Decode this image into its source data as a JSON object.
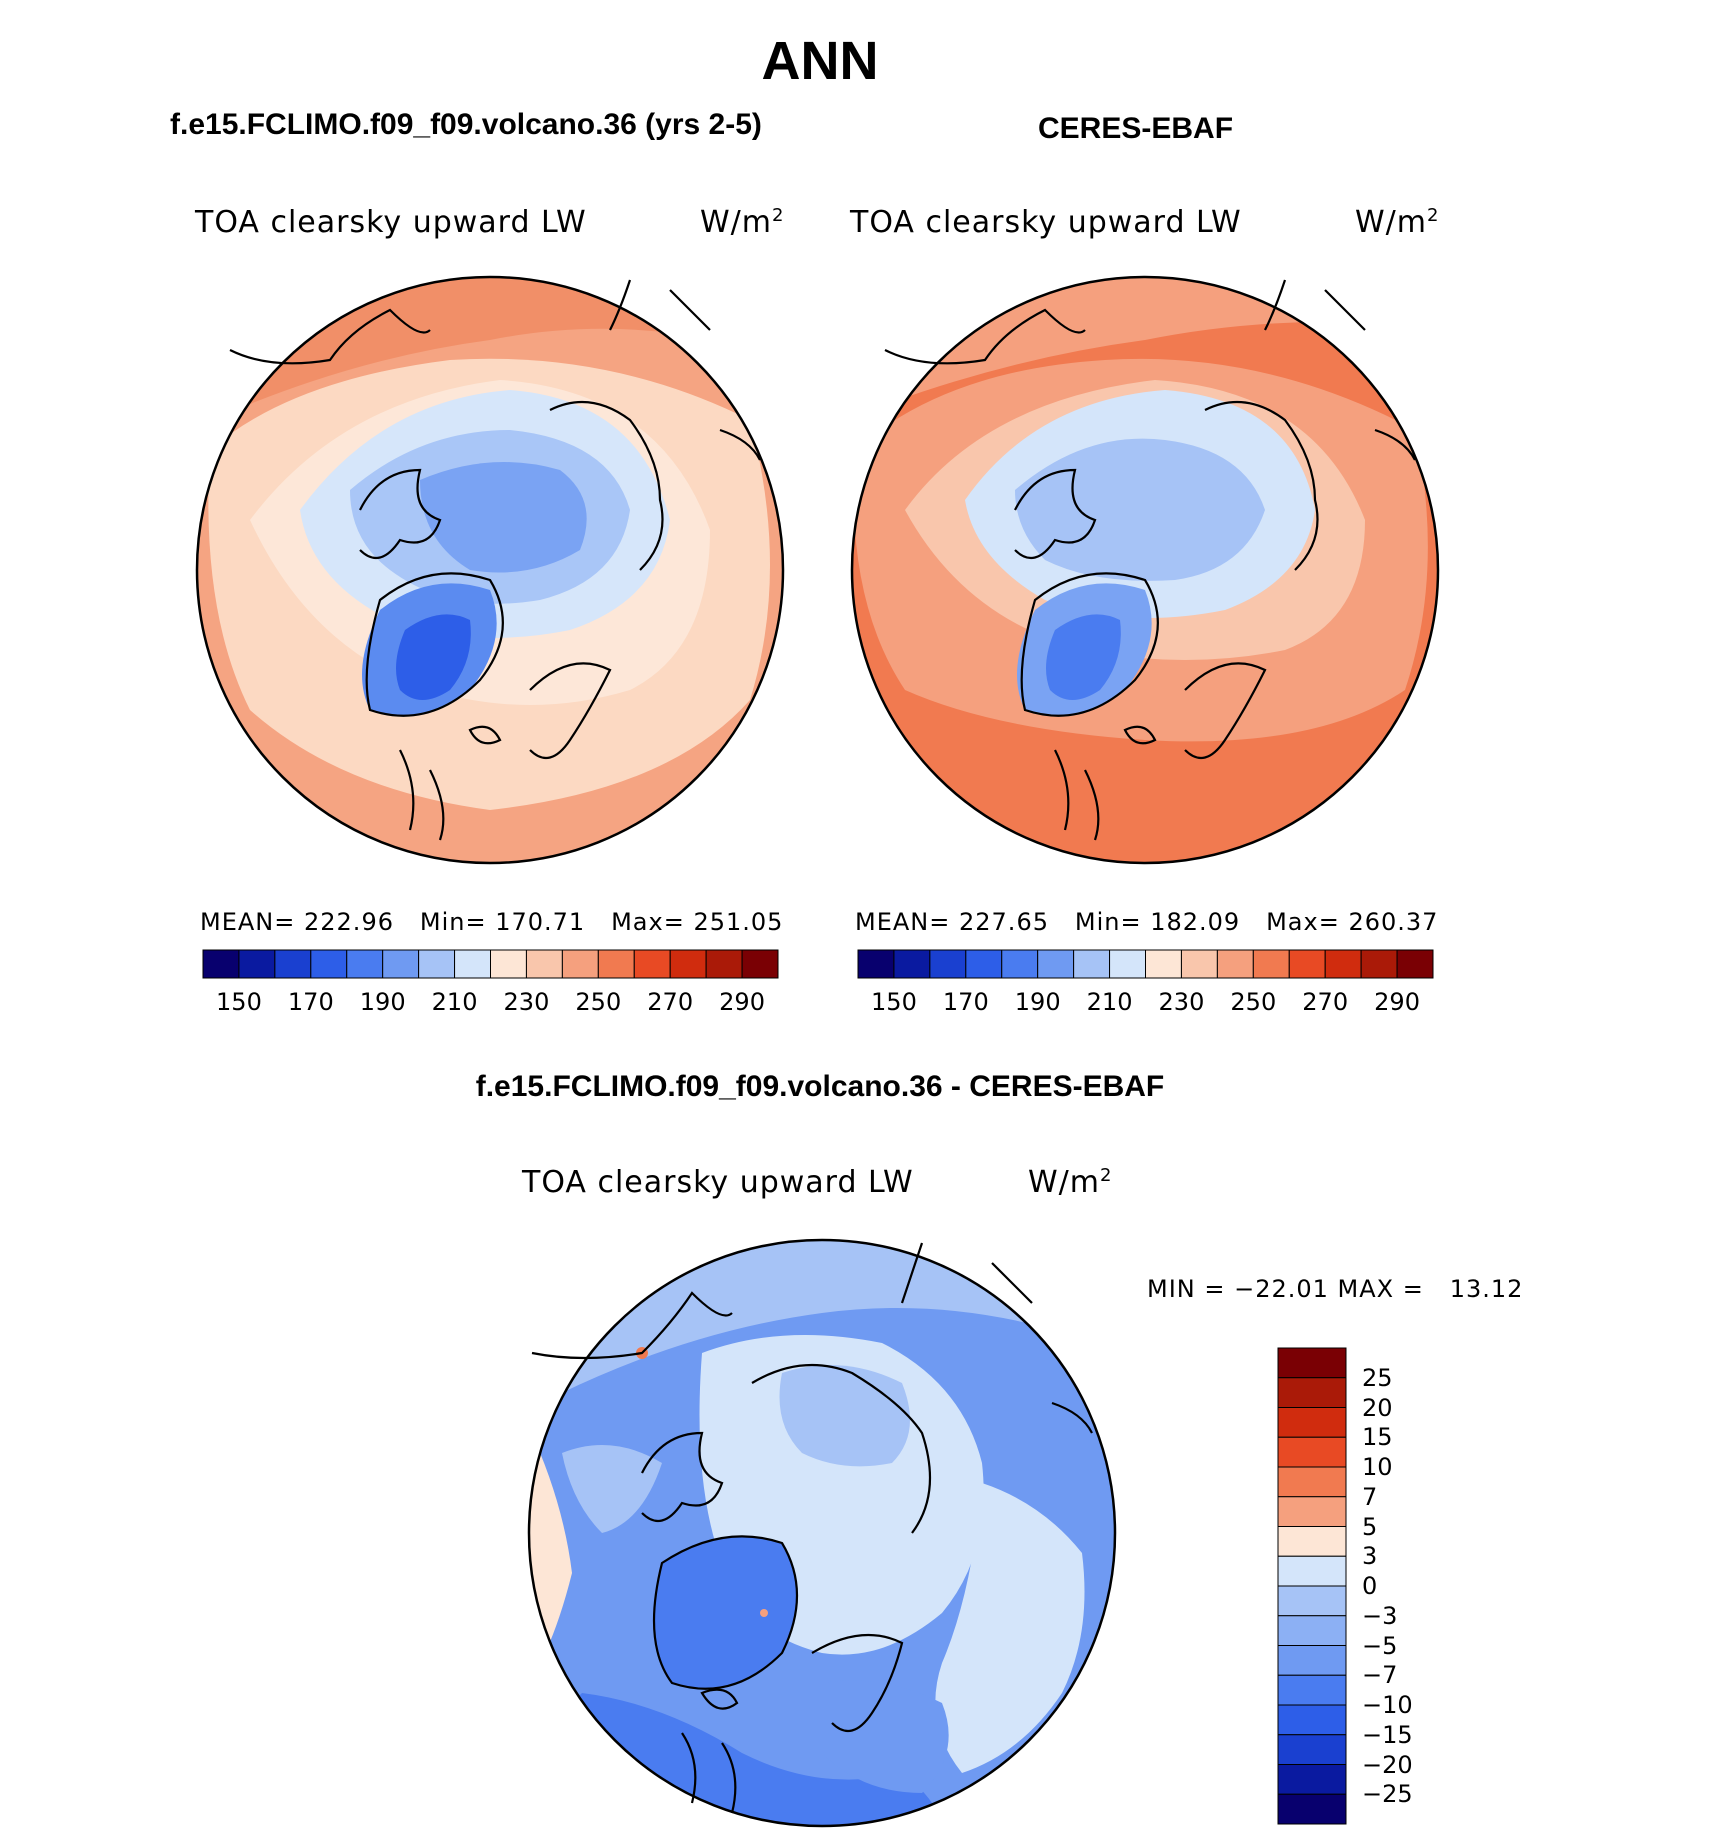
{
  "title": "ANN",
  "colors": {
    "land_line": "#000000",
    "cb1": [
      "#08006e",
      "#0a1aa0",
      "#1a40d0",
      "#2d5ee8",
      "#4a7cf0",
      "#6f9af2",
      "#a6c3f6",
      "#d4e5fa",
      "#fde6d6",
      "#f9c6ac",
      "#f5a07e",
      "#f17a50",
      "#e84a24",
      "#d02c0e",
      "#aa1a08",
      "#7a0004"
    ],
    "cb2": [
      "#08006e",
      "#0a1aa0",
      "#1a40d0",
      "#2d5ee8",
      "#4a7cf0",
      "#6f9af2",
      "#a6c3f6",
      "#d4e5fa",
      "#fde6d6",
      "#f9c6ac",
      "#f5a07e",
      "#f17a50",
      "#e84a24",
      "#d02c0e",
      "#aa1a08",
      "#7a0004"
    ]
  },
  "panels": [
    {
      "case_title": "f.e15.FCLIMO.f09_f09.volcano.36 (yrs 2-5)",
      "variable": "TOA clearsky upward LW",
      "units": "W/m",
      "units_sup": "2",
      "stats": {
        "mean_label": "MEAN=",
        "mean": "222.96",
        "min_label": "Min=",
        "min": "170.71",
        "max_label": "Max=",
        "max": "251.05"
      },
      "colorbar_ticks": [
        "150",
        "170",
        "190",
        "210",
        "230",
        "250",
        "270",
        "290"
      ]
    },
    {
      "case_title": "CERES-EBAF",
      "variable": "TOA clearsky upward LW",
      "units": "W/m",
      "units_sup": "2",
      "stats": {
        "mean_label": "MEAN=",
        "mean": "227.65",
        "min_label": "Min=",
        "min": "182.09",
        "max_label": "Max=",
        "max": "260.37"
      },
      "colorbar_ticks": [
        "150",
        "170",
        "190",
        "210",
        "230",
        "250",
        "270",
        "290"
      ]
    }
  ],
  "diff": {
    "title": "f.e15.FCLIMO.f09_f09.volcano.36 - CERES-EBAF",
    "variable": "TOA clearsky upward LW",
    "units": "W/m",
    "units_sup": "2",
    "minmax": "MIN = −22.01 MAX =   13.12",
    "colorbar_colors": [
      "#7a0004",
      "#aa1a08",
      "#d02c0e",
      "#e84a24",
      "#f17a50",
      "#f5a07e",
      "#fde6d6",
      "#d4e5fa",
      "#a6c3f6",
      "#8cb0f4",
      "#6f9af2",
      "#4a7cf0",
      "#2d5ee8",
      "#1a40d0",
      "#0a1aa0",
      "#08006e"
    ],
    "colorbar_ticks": [
      "25",
      "20",
      "15",
      "10",
      "7",
      "5",
      "3",
      "0",
      "−3",
      "−5",
      "−7",
      "−10",
      "−15",
      "−20",
      "−25"
    ]
  }
}
